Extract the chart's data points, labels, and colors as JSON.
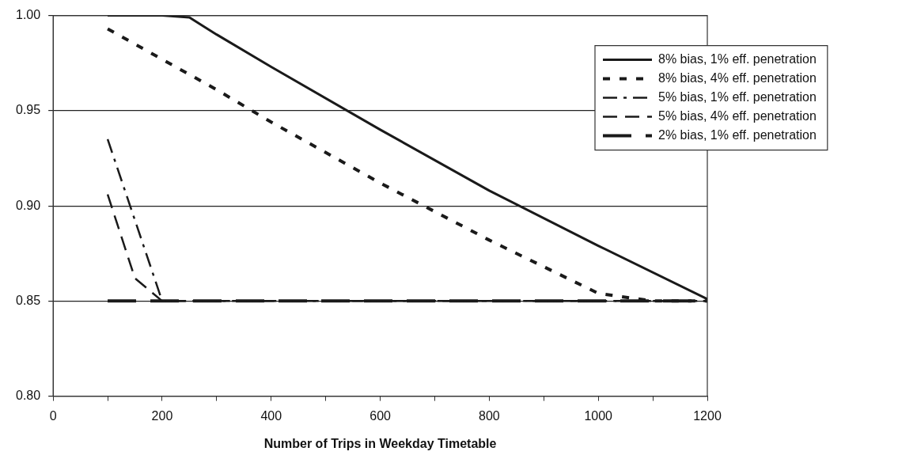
{
  "chart_data": {
    "type": "line",
    "xlabel": "Number of Trips in Weekday Timetable",
    "xlim": [
      0,
      1200
    ],
    "xticks": [
      0,
      {
        "value": 100,
        "label": null
      },
      200,
      {
        "value": 300,
        "label": null
      },
      400,
      {
        "value": 500,
        "label": null
      },
      600,
      {
        "value": 700,
        "label": null
      },
      800,
      {
        "value": 900,
        "label": null
      },
      1000,
      {
        "value": 1100,
        "label": null
      },
      1200
    ],
    "ylim": [
      0.8,
      1.0
    ],
    "yticks": [
      {
        "value": 0.8,
        "label": "0.80"
      },
      {
        "value": 0.85,
        "label": "0.85"
      },
      {
        "value": 0.9,
        "label": "0.90"
      },
      {
        "value": 0.95,
        "label": "0.95"
      },
      {
        "value": 1.0,
        "label": "1.00"
      }
    ],
    "grid": "y",
    "legend": "top right",
    "marker": "none",
    "series": [
      {
        "name": "8% bias, 1% eff. penetration",
        "color": "#1a1a1a",
        "line_style": "solid",
        "x": [
          100,
          200,
          250,
          300,
          400,
          600,
          800,
          1000,
          1200
        ],
        "values": [
          1.0,
          1.0,
          0.999,
          0.99,
          0.973,
          0.94,
          0.908,
          0.879,
          0.851
        ]
      },
      {
        "name": "8% bias, 4% eff. penetration",
        "color": "#1a1a1a",
        "line_style": "dashed",
        "x": [
          100,
          200,
          300,
          400,
          600,
          800,
          1000,
          1100,
          1200
        ],
        "values": [
          0.993,
          0.977,
          0.961,
          0.944,
          0.912,
          0.882,
          0.854,
          0.85,
          0.85
        ]
      },
      {
        "name": "5% bias, 1% eff. penetration",
        "color": "#1a1a1a",
        "line_style": "dashdot",
        "x": [
          100,
          200,
          1200
        ],
        "values": [
          0.935,
          0.85,
          0.85
        ]
      },
      {
        "name": "5% bias, 4% eff. penetration",
        "color": "#1a1a1a",
        "line_style": "dashed",
        "x": [
          100,
          150,
          200,
          1200
        ],
        "values": [
          0.906,
          0.862,
          0.85,
          0.85
        ]
      },
      {
        "name": "2% bias, 1% eff. penetration",
        "color": "#1a1a1a",
        "line_style": "dashed",
        "x": [
          100,
          1200
        ],
        "values": [
          0.85,
          0.85
        ]
      }
    ]
  }
}
